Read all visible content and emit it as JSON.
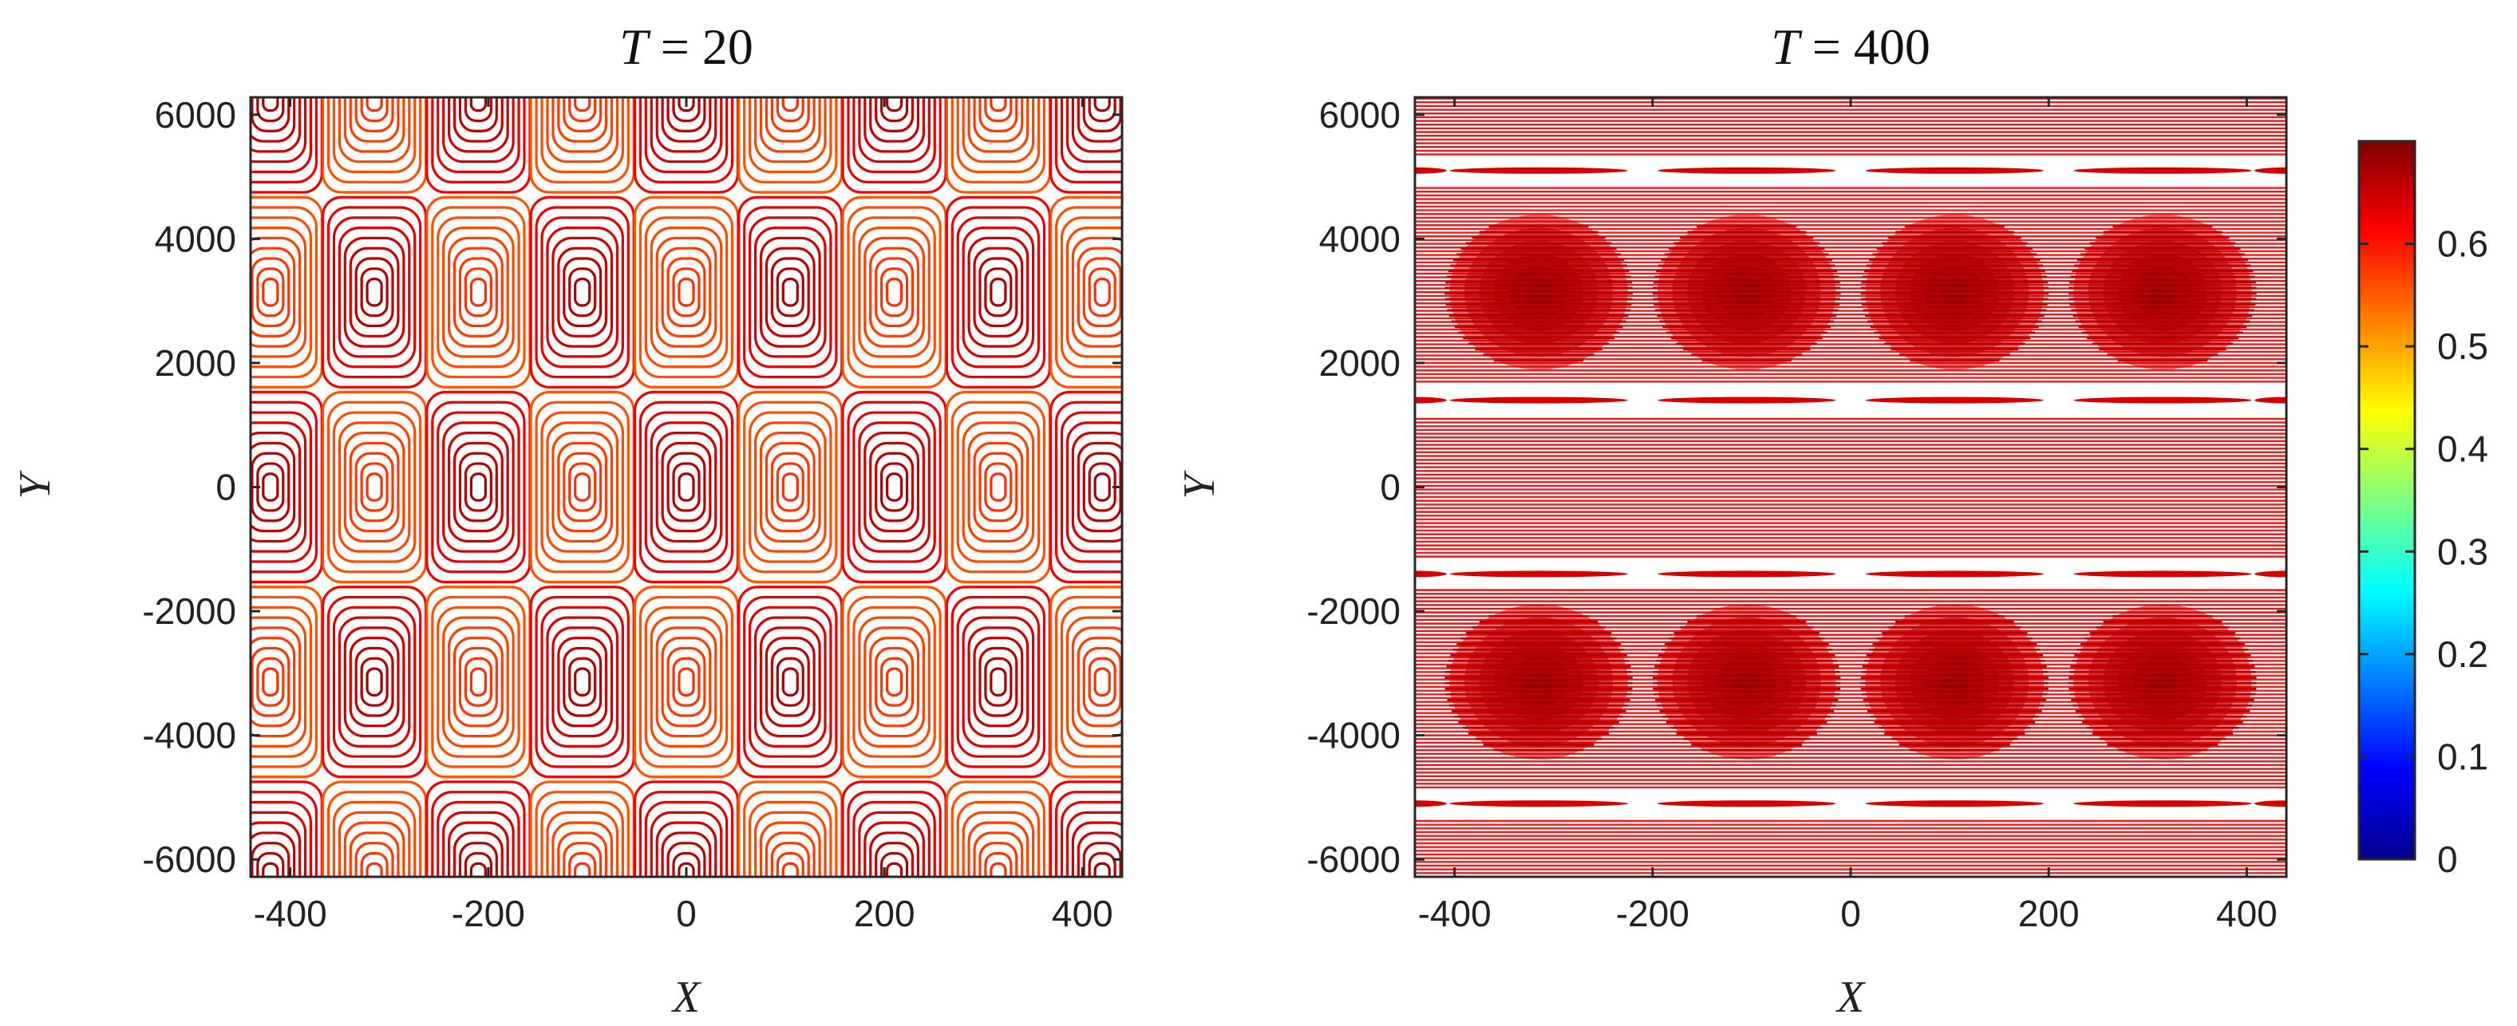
{
  "chart_data": [
    {
      "type": "contour",
      "title_var": "T",
      "title_rest": " = 20",
      "xlabel": "X",
      "ylabel": "Y",
      "xlim": [
        -440,
        440
      ],
      "ylim": [
        -6280,
        6280
      ],
      "x_ticks": [
        -400,
        -200,
        0,
        200,
        400
      ],
      "y_ticks": [
        -6000,
        -4000,
        -2000,
        0,
        2000,
        4000,
        6000
      ],
      "x_tick_labels": [
        "-400",
        "-200",
        "0",
        "200",
        "400"
      ],
      "y_tick_labels": [
        "-6000",
        "-4000",
        "-2000",
        "0",
        "2000",
        "4000",
        "6000"
      ],
      "cell_centers_x": [
        -420,
        -315,
        -210,
        -105,
        0,
        105,
        210,
        315,
        420
      ],
      "cell_centers_y": [
        -6280,
        -3140,
        0,
        3140,
        6280
      ],
      "contour_color_range": [
        0.55,
        0.68
      ]
    },
    {
      "type": "contour",
      "title_var": "T",
      "title_rest": " = 400",
      "xlabel": "X",
      "ylabel": "Y",
      "xlim": [
        -440,
        440
      ],
      "ylim": [
        -6280,
        6280
      ],
      "x_ticks": [
        -400,
        -200,
        0,
        200,
        400
      ],
      "y_ticks": [
        -6000,
        -4000,
        -2000,
        0,
        2000,
        4000,
        6000
      ],
      "x_tick_labels": [
        "-400",
        "-200",
        "0",
        "200",
        "400"
      ],
      "y_tick_labels": [
        "-6000",
        "-4000",
        "-2000",
        "0",
        "2000",
        "4000",
        "6000"
      ],
      "blob_centers_x": [
        -315,
        -105,
        105,
        315
      ],
      "blob_centers_y": [
        3140,
        -3140
      ],
      "gap_bands_y": [
        5100,
        1400,
        -1400,
        -5100
      ],
      "contour_color_range": [
        0.6,
        0.66
      ]
    }
  ],
  "colorbar": {
    "range": [
      0,
      0.7
    ],
    "ticks": [
      0,
      0.1,
      0.2,
      0.3,
      0.4,
      0.5,
      0.6
    ],
    "tick_labels": [
      "0",
      "0.1",
      "0.2",
      "0.3",
      "0.4",
      "0.5",
      "0.6"
    ],
    "colormap": "jet"
  }
}
